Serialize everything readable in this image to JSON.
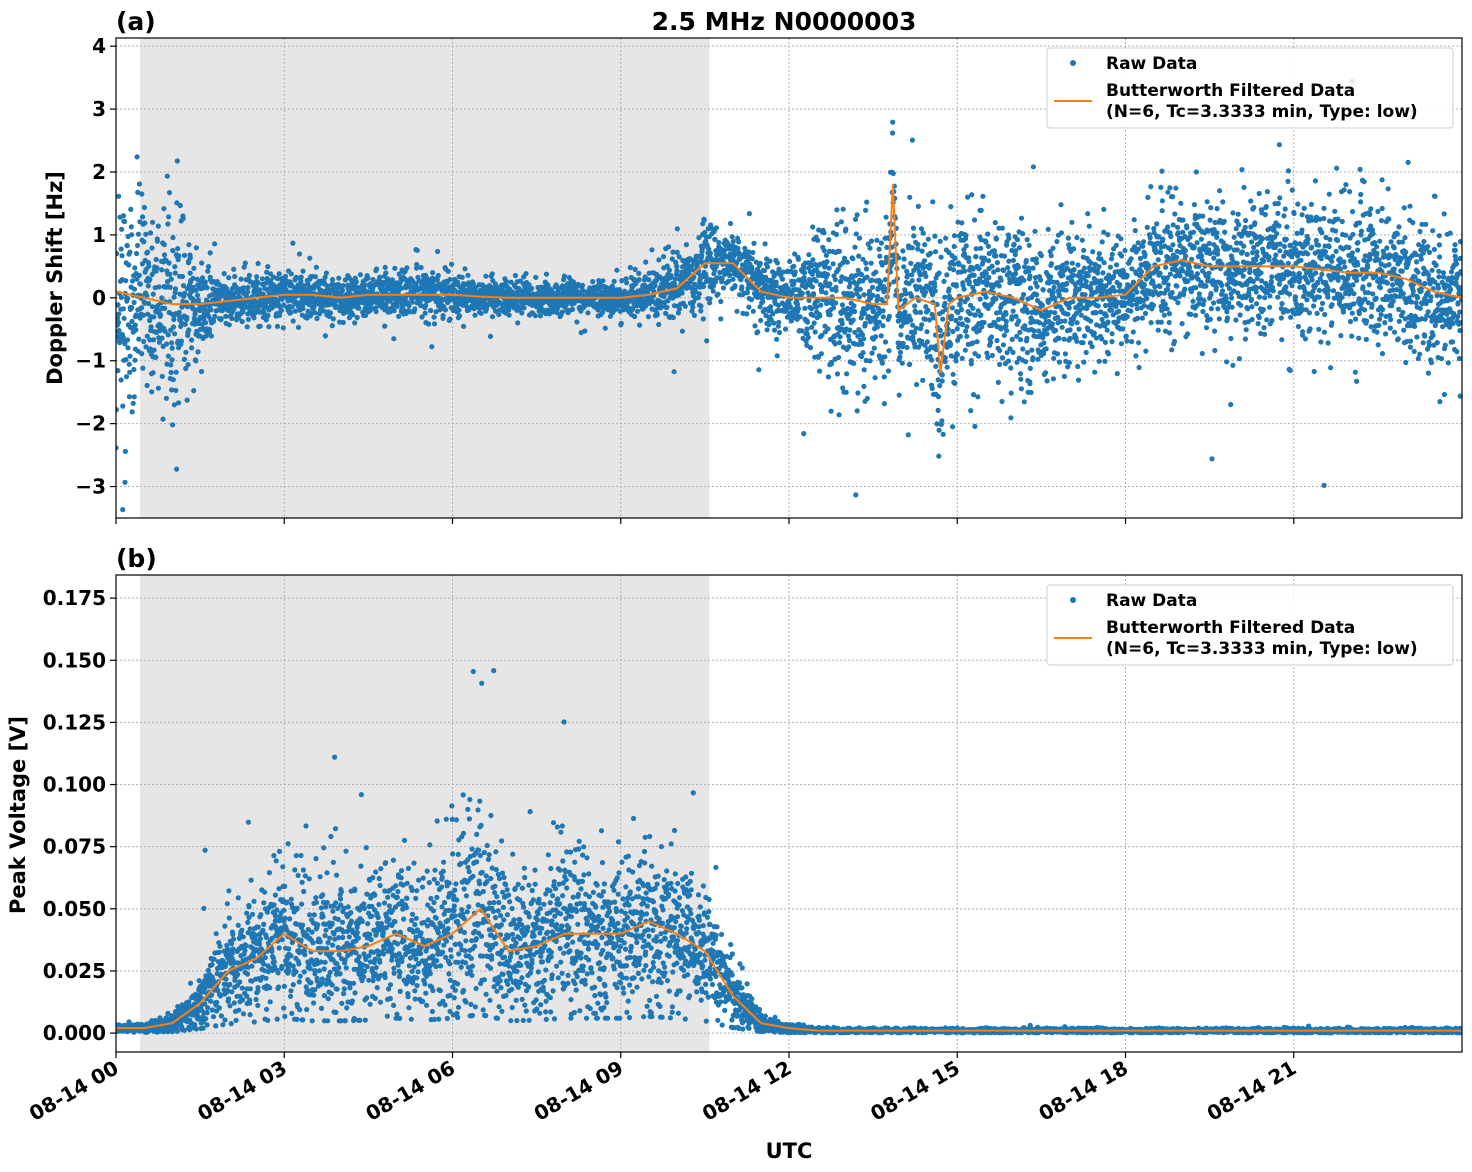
{
  "title": "2.5 MHz N0000003",
  "xlabel": "UTC",
  "x_tick_labels": [
    "08-14 00",
    "08-14 03",
    "08-14 06",
    "08-14 09",
    "08-14 12",
    "08-14 15",
    "08-14 18",
    "08-14 21"
  ],
  "legend": {
    "raw": "Raw Data",
    "filtered_line1": "Butterworth Filtered Data",
    "filtered_line2": "(N=6, Tc=3.3333 min, Type: low)"
  },
  "colors": {
    "raw": "#1f77b4",
    "filtered": "#ff7f0e",
    "night_shading": "#e6e6e6",
    "grid": "#b0b0b0"
  },
  "chart_data": [
    {
      "type": "scatter",
      "panel_label": "(a)",
      "ylabel": "Doppler Shift [Hz]",
      "x_unit": "hours UTC on 08-14",
      "xlim": [
        0,
        24
      ],
      "ylim": [
        -3.5,
        4.13
      ],
      "yticks": [
        -3,
        -2,
        -1,
        0,
        1,
        2,
        3,
        4
      ],
      "ytick_labels": [
        "−3",
        "−2",
        "−1",
        "0",
        "1",
        "2",
        "3",
        "4"
      ],
      "grid": true,
      "legend_position": "top-right",
      "shaded_span_hours": [
        0.43,
        10.58
      ],
      "series": [
        {
          "name": "Butterworth Filtered Data",
          "kind": "line",
          "x": [
            0,
            0.5,
            1,
            1.5,
            2,
            2.5,
            3,
            3.5,
            4,
            4.5,
            5,
            5.5,
            6,
            6.5,
            7,
            7.5,
            8,
            8.5,
            9,
            9.5,
            10,
            10.5,
            11,
            11.5,
            12,
            12.5,
            13,
            13.5,
            13.75,
            13.85,
            13.95,
            14.25,
            14.6,
            14.7,
            14.85,
            15,
            15.5,
            16,
            16.5,
            17,
            17.5,
            18,
            18.5,
            19,
            19.5,
            20,
            20.5,
            21,
            21.5,
            22,
            22.5,
            23,
            23.5,
            24
          ],
          "y": [
            0.1,
            0,
            -0.1,
            -0.1,
            -0.05,
            0,
            0.05,
            0.05,
            0,
            0.05,
            0.05,
            0.05,
            0.05,
            0.02,
            0,
            0,
            0,
            0,
            0,
            0.05,
            0.15,
            0.55,
            0.55,
            0.1,
            0,
            0,
            0,
            -0.1,
            -0.1,
            1.8,
            -0.2,
            0,
            -0.1,
            -1.2,
            -0.1,
            0,
            0.1,
            0,
            -0.2,
            0,
            0,
            0.05,
            0.5,
            0.6,
            0.5,
            0.5,
            0.5,
            0.5,
            0.45,
            0.4,
            0.4,
            0.3,
            0.1,
            0
          ]
        },
        {
          "name": "Raw Data",
          "kind": "scatter",
          "note_spread": [
            1.0,
            0.8,
            0.8,
            0.4,
            0.2,
            0.2,
            0.2,
            0.2,
            0.2,
            0.2,
            0.2,
            0.2,
            0.2,
            0.15,
            0.15,
            0.15,
            0.15,
            0.15,
            0.15,
            0.2,
            0.3,
            0.4,
            0.3,
            0.3,
            0.3,
            0.6,
            0.7,
            0.7,
            0.7,
            0.9,
            0.7,
            0.7,
            0.8,
            1.0,
            0.8,
            0.7,
            0.7,
            0.7,
            0.7,
            0.6,
            0.5,
            0.4,
            0.6,
            0.6,
            0.6,
            0.6,
            0.6,
            0.6,
            0.6,
            0.6,
            0.6,
            0.6,
            0.6,
            0.5
          ]
        }
      ]
    },
    {
      "type": "scatter",
      "panel_label": "(b)",
      "ylabel": "Peak Voltage [V]",
      "x_unit": "hours UTC on 08-14",
      "xlim": [
        0,
        24
      ],
      "ylim": [
        -0.0076,
        0.1843
      ],
      "yticks": [
        0,
        0.025,
        0.05,
        0.075,
        0.1,
        0.125,
        0.15,
        0.175
      ],
      "ytick_labels": [
        "0.000",
        "0.025",
        "0.050",
        "0.075",
        "0.100",
        "0.125",
        "0.150",
        "0.175"
      ],
      "grid": true,
      "legend_position": "top-right",
      "shaded_span_hours": [
        0.43,
        10.58
      ],
      "series": [
        {
          "name": "Butterworth Filtered Data",
          "kind": "line",
          "x": [
            0,
            0.5,
            1,
            1.5,
            2,
            2.5,
            3,
            3.5,
            4,
            4.5,
            5,
            5.5,
            6,
            6.5,
            7,
            7.5,
            8,
            8.5,
            9,
            9.5,
            10,
            10.5,
            11,
            11.5,
            12,
            12.5,
            13,
            13.5,
            14,
            14.5,
            15,
            15.5,
            16,
            16.5,
            17,
            17.5,
            18,
            18.5,
            19,
            19.5,
            20,
            20.5,
            21,
            21.5,
            22,
            22.5,
            23,
            23.5,
            24
          ],
          "y": [
            0.002,
            0.002,
            0.004,
            0.012,
            0.025,
            0.03,
            0.04,
            0.033,
            0.033,
            0.035,
            0.04,
            0.035,
            0.04,
            0.05,
            0.033,
            0.035,
            0.04,
            0.04,
            0.04,
            0.045,
            0.04,
            0.033,
            0.015,
            0.004,
            0.002,
            0.001,
            0.001,
            0.001,
            0.001,
            0.001,
            0.001,
            0.001,
            0.001,
            0.001,
            0.001,
            0.001,
            0.001,
            0.001,
            0.001,
            0.001,
            0.001,
            0.001,
            0.001,
            0.001,
            0.001,
            0.001,
            0.001,
            0.001,
            0.001
          ]
        },
        {
          "name": "Raw Data",
          "kind": "scatter",
          "note_spread": [
            0.001,
            0.001,
            0.002,
            0.006,
            0.012,
            0.014,
            0.018,
            0.016,
            0.016,
            0.017,
            0.018,
            0.017,
            0.02,
            0.024,
            0.016,
            0.017,
            0.018,
            0.018,
            0.018,
            0.02,
            0.018,
            0.015,
            0.007,
            0.002,
            0.001,
            0.0005,
            0.0005,
            0.0005,
            0.0005,
            0.0005,
            0.0005,
            0.0005,
            0.0005,
            0.0005,
            0.0005,
            0.0005,
            0.0005,
            0.0005,
            0.0005,
            0.0005,
            0.0005,
            0.0005,
            0.0005,
            0.0005,
            0.0005,
            0.0005,
            0.0005,
            0.0005,
            0.0005
          ]
        }
      ]
    }
  ]
}
